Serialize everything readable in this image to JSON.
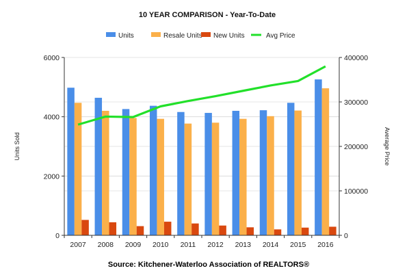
{
  "chart_data": {
    "type": "bar",
    "title": "10 YEAR COMPARISON - Year-To-Date",
    "ylabel": "Units Sold",
    "y2label": "Average Price",
    "ylim": [
      0,
      6000
    ],
    "y2lim": [
      0,
      400000
    ],
    "yticks": [
      "0",
      "2000",
      "4000",
      "6000"
    ],
    "y2ticks": [
      "0",
      "100000",
      "200000",
      "300000",
      "400000"
    ],
    "categories": [
      "2007",
      "2008",
      "2009",
      "2010",
      "2011",
      "2012",
      "2013",
      "2014",
      "2015",
      "2016"
    ],
    "legend_position": "top",
    "grid": true,
    "series": [
      {
        "name": "Units",
        "type": "bar",
        "axis": "left",
        "color": "#4a8ee8",
        "values": [
          4980,
          4640,
          4260,
          4370,
          4160,
          4130,
          4200,
          4220,
          4470,
          5260
        ]
      },
      {
        "name": "Resale Units",
        "type": "bar",
        "axis": "left",
        "color": "#fbb04a",
        "values": [
          4470,
          4200,
          3960,
          3930,
          3770,
          3800,
          3930,
          4020,
          4210,
          4960
        ]
      },
      {
        "name": "New Units",
        "type": "bar",
        "axis": "left",
        "color": "#d9480f",
        "values": [
          520,
          440,
          310,
          460,
          400,
          330,
          270,
          200,
          260,
          290
        ]
      },
      {
        "name": "Avg Price",
        "type": "line",
        "axis": "right",
        "color": "#22e02a",
        "values": [
          249000,
          267000,
          266000,
          290000,
          302000,
          313000,
          325000,
          337000,
          347000,
          380000
        ]
      }
    ]
  },
  "source": "Source: Kitchener-Waterloo Association of REALTORS®"
}
